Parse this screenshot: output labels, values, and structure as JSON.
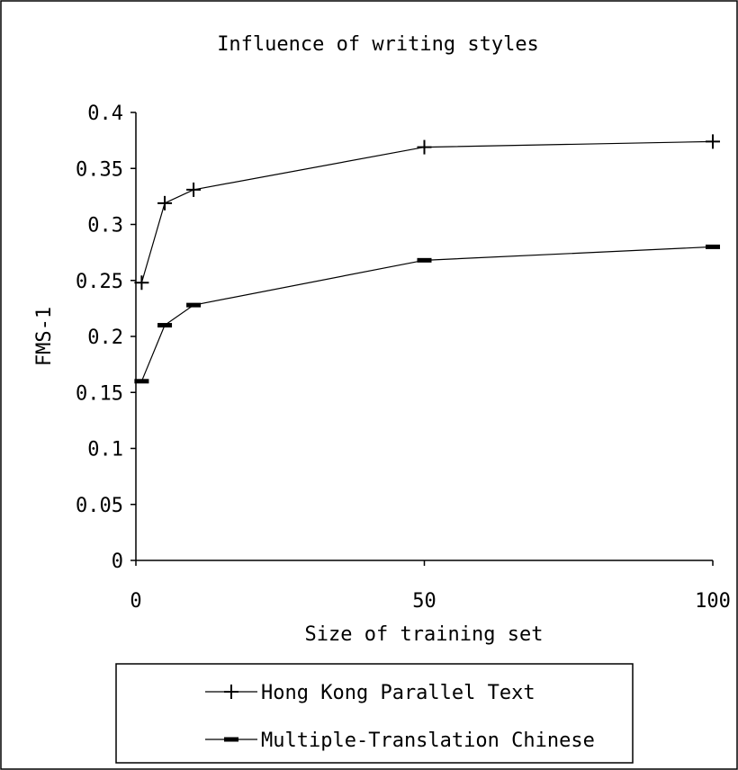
{
  "chart_data": {
    "type": "line",
    "title": "Influence of writing styles",
    "xlabel": "Size of training set",
    "ylabel": "FMS-1",
    "xlim": [
      0,
      100
    ],
    "ylim": [
      0,
      0.4
    ],
    "xticks": [
      0,
      50,
      100
    ],
    "xtick_labels": [
      "0",
      "50",
      "100"
    ],
    "yticks": [
      0,
      0.05,
      0.1,
      0.15,
      0.2,
      0.25,
      0.3,
      0.35,
      0.4
    ],
    "ytick_labels": [
      "0",
      "0.05",
      "0.1",
      "0.15",
      "0.2",
      "0.25",
      "0.3",
      "0.35",
      "0.4"
    ],
    "grid": false,
    "legend_position": "bottom",
    "series": [
      {
        "name": "Hong Kong Parallel Text",
        "marker": "plus",
        "x": [
          1,
          5,
          10,
          50,
          100
        ],
        "y": [
          0.248,
          0.319,
          0.331,
          0.369,
          0.374
        ]
      },
      {
        "name": "Multiple-Translation Chinese",
        "marker": "dash",
        "x": [
          1,
          5,
          10,
          50,
          100
        ],
        "y": [
          0.16,
          0.21,
          0.228,
          0.268,
          0.28
        ]
      }
    ]
  }
}
